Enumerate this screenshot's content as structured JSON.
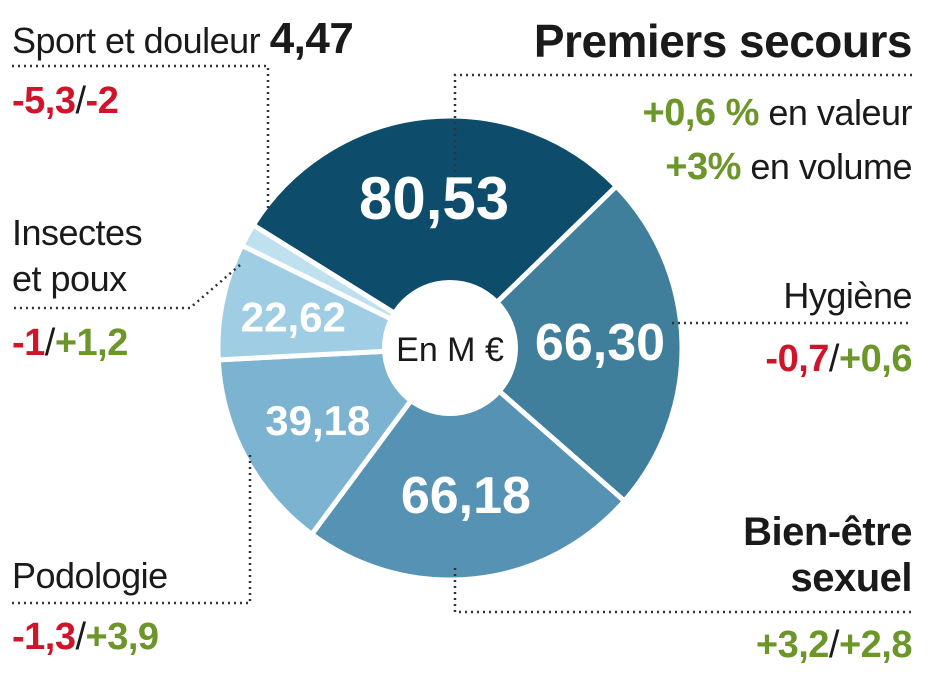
{
  "chart_data": {
    "type": "pie",
    "center_label": "En M €",
    "categories": [
      "Premiers secours",
      "Hygiène",
      "Bien-être sexuel",
      "Podologie",
      "Insectes et poux",
      "Sport et douleur"
    ],
    "values": [
      80.53,
      66.3,
      66.18,
      39.18,
      22.62,
      4.47
    ],
    "value_labels": [
      "80,53",
      "66,30",
      "66,18",
      "39,18",
      "22,62",
      "4,47"
    ],
    "colors": [
      "#0d4d6b",
      "#3f7f9c",
      "#5592b3",
      "#7cb3d0",
      "#9fcde3",
      "#bfe1ef"
    ],
    "label_colors": {
      "negative": "#d0152b",
      "positive": "#6c962a"
    }
  },
  "labels": {
    "premiers_secours": {
      "title": "Premiers secours",
      "value_change": "+0,6 %",
      "value_text": "en valeur",
      "volume_change": "+3%",
      "volume_text": "en volume"
    },
    "hygiene": {
      "title": "Hygiène",
      "change_a": "-0,7",
      "slash": "/",
      "change_b": "+0,6"
    },
    "bien_etre": {
      "title_line1": "Bien-être",
      "title_line2": "sexuel",
      "change_a": "+3,2",
      "slash": "/",
      "change_b": "+2,8"
    },
    "podologie": {
      "title": "Podologie",
      "change_a": "-1,3",
      "slash": "/",
      "change_b": "+3,9"
    },
    "insectes": {
      "title_line1": "Insectes",
      "title_line2": "et poux",
      "change_a": "-1",
      "slash": "/",
      "change_b": "+1,2"
    },
    "sport": {
      "title": "Sport et douleur",
      "value": "4,47",
      "change_a": "-5,3",
      "slash": "/",
      "change_b": "-2"
    }
  }
}
